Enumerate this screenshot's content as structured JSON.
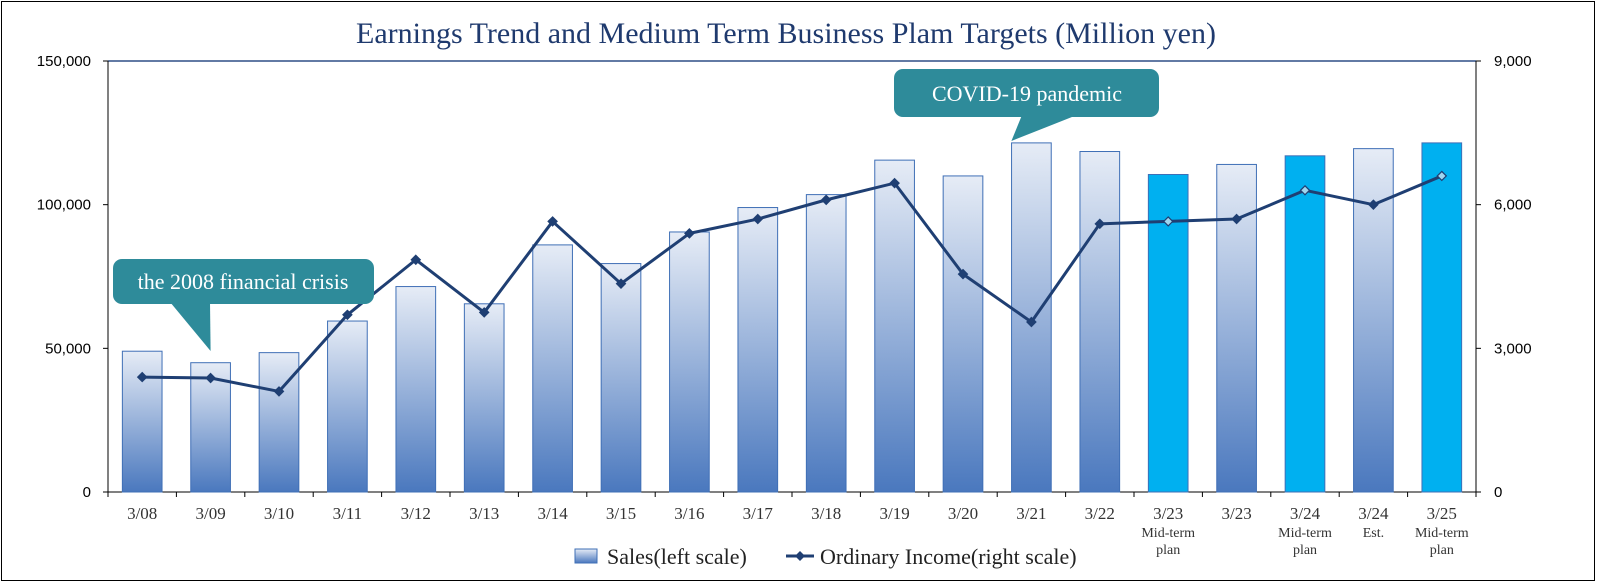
{
  "chart_data": {
    "type": "bar",
    "title": "Earnings Trend and Medium Term Business Plam Targets (Million yen)",
    "categories": [
      {
        "label": "3/08",
        "sub": []
      },
      {
        "label": "3/09",
        "sub": []
      },
      {
        "label": "3/10",
        "sub": []
      },
      {
        "label": "3/11",
        "sub": []
      },
      {
        "label": "3/12",
        "sub": []
      },
      {
        "label": "3/13",
        "sub": []
      },
      {
        "label": "3/14",
        "sub": []
      },
      {
        "label": "3/15",
        "sub": []
      },
      {
        "label": "3/16",
        "sub": []
      },
      {
        "label": "3/17",
        "sub": []
      },
      {
        "label": "3/18",
        "sub": []
      },
      {
        "label": "3/19",
        "sub": []
      },
      {
        "label": "3/20",
        "sub": []
      },
      {
        "label": "3/21",
        "sub": []
      },
      {
        "label": "3/22",
        "sub": []
      },
      {
        "label": "3/23",
        "sub": [
          "Mid-term",
          "plan"
        ]
      },
      {
        "label": "3/23",
        "sub": []
      },
      {
        "label": "3/24",
        "sub": [
          "Mid-term",
          "plan"
        ]
      },
      {
        "label": "3/24",
        "sub": [
          "Est."
        ]
      },
      {
        "label": "3/25",
        "sub": [
          "Mid-term",
          "plan"
        ]
      }
    ],
    "series": [
      {
        "name": "Sales(left scale)",
        "axis": "left",
        "kind": "bar",
        "values": [
          49000,
          45000,
          48500,
          59500,
          71500,
          65500,
          86000,
          79500,
          90500,
          99000,
          103500,
          115500,
          110000,
          121500,
          118500,
          110500,
          114000,
          117000,
          119500,
          121500
        ],
        "plan_flags": [
          false,
          false,
          false,
          false,
          false,
          false,
          false,
          false,
          false,
          false,
          false,
          false,
          false,
          false,
          false,
          true,
          false,
          true,
          false,
          true
        ]
      },
      {
        "name": "Ordinary Income(right scale)",
        "axis": "right",
        "kind": "line",
        "values": [
          2400,
          2380,
          2100,
          3700,
          4850,
          3750,
          5650,
          4350,
          5400,
          5700,
          6100,
          6450,
          4550,
          3550,
          5600,
          5650,
          5700,
          6300,
          6000,
          6600
        ]
      }
    ],
    "y_left": {
      "min": 0,
      "max": 150000,
      "ticks": [
        "0",
        "50,000",
        "100,000",
        "150,000"
      ]
    },
    "y_right": {
      "min": 0,
      "max": 9000,
      "ticks": [
        "0",
        "3,000",
        "6,000",
        "9,000"
      ]
    },
    "grid": false,
    "legend_position": "bottom",
    "annotations": [
      {
        "text": "the 2008 financial crisis",
        "category_index": 1
      },
      {
        "text": "COVID-19 pandemic",
        "category_index": 13
      }
    ],
    "colors": {
      "bar_top": "#e6ecf6",
      "bar_bottom": "#4a78be",
      "bar_border": "#3f6fb6",
      "plan_bar": "#00b0f0",
      "line": "#1f3f73",
      "callout": "#2e8b9a",
      "title": "#1f3a6e"
    }
  }
}
